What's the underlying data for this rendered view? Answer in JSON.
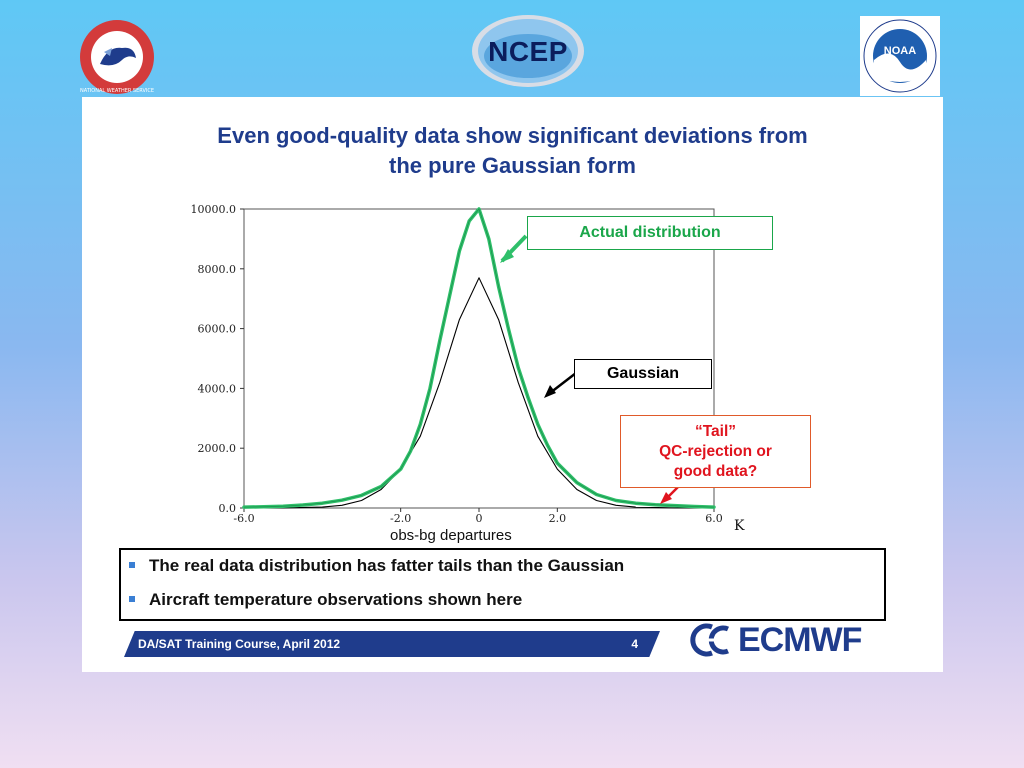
{
  "logos": {
    "nws_text": "NATIONAL WEATHER SERVICE",
    "ncep_text": "NCEP",
    "noaa_text": "NOAA",
    "ecmwf_text": "ECMWF"
  },
  "slide": {
    "title_line1": "Even good-quality data show significant deviations from",
    "title_line2": "the pure Gaussian form",
    "annotations": {
      "actual": "Actual distribution",
      "gaussian": "Gaussian",
      "tail_line1": "“Tail”",
      "tail_line2": "QC-rejection or",
      "tail_line3": "good data?"
    },
    "bullets": [
      "The real data distribution has fatter tails than the Gaussian",
      "Aircraft temperature observations shown here"
    ],
    "footer": {
      "course": "DA/SAT Training Course, April 2012",
      "page": "4"
    }
  },
  "chart_data": {
    "type": "line",
    "xlabel": "obs-bg departures",
    "x_unit": "K",
    "xlim": [
      -6.0,
      6.0
    ],
    "ylim": [
      0,
      10000
    ],
    "y_ticks": [
      "0.0",
      "2000.0",
      "4000.0",
      "6000.0",
      "8000.0",
      "10000.0"
    ],
    "x_ticks": [
      "-6.0",
      "-2.0",
      "0",
      "2.0",
      "6.0"
    ],
    "x_tick_values": [
      -6,
      -2,
      0,
      2,
      6
    ],
    "y_tick_values": [
      0,
      2000,
      4000,
      6000,
      8000,
      10000
    ],
    "series": [
      {
        "name": "Actual distribution",
        "color": "#2fbf6a",
        "x": [
          -6,
          -5.5,
          -5,
          -4.5,
          -4,
          -3.5,
          -3,
          -2.5,
          -2,
          -1.75,
          -1.5,
          -1.25,
          -1,
          -0.75,
          -0.5,
          -0.25,
          0,
          0.25,
          0.5,
          0.75,
          1,
          1.25,
          1.5,
          1.75,
          2,
          2.5,
          3,
          3.5,
          4,
          4.5,
          5,
          5.5,
          6
        ],
        "y": [
          30,
          40,
          60,
          100,
          160,
          260,
          420,
          720,
          1300,
          1900,
          2800,
          4000,
          5600,
          7100,
          8600,
          9600,
          10000,
          9000,
          7400,
          6000,
          4700,
          3700,
          2800,
          2100,
          1500,
          850,
          450,
          250,
          160,
          110,
          80,
          50,
          30
        ]
      },
      {
        "name": "Gaussian",
        "color": "#000000",
        "x": [
          -6,
          -5,
          -4,
          -3.5,
          -3,
          -2.5,
          -2,
          -1.5,
          -1,
          -0.5,
          0,
          0.5,
          1,
          1.5,
          2,
          2.5,
          3,
          3.5,
          4,
          5,
          6
        ],
        "y": [
          0,
          2,
          30,
          90,
          250,
          620,
          1300,
          2400,
          4200,
          6300,
          7700,
          6300,
          4200,
          2400,
          1300,
          620,
          250,
          90,
          30,
          2,
          0
        ]
      }
    ]
  }
}
